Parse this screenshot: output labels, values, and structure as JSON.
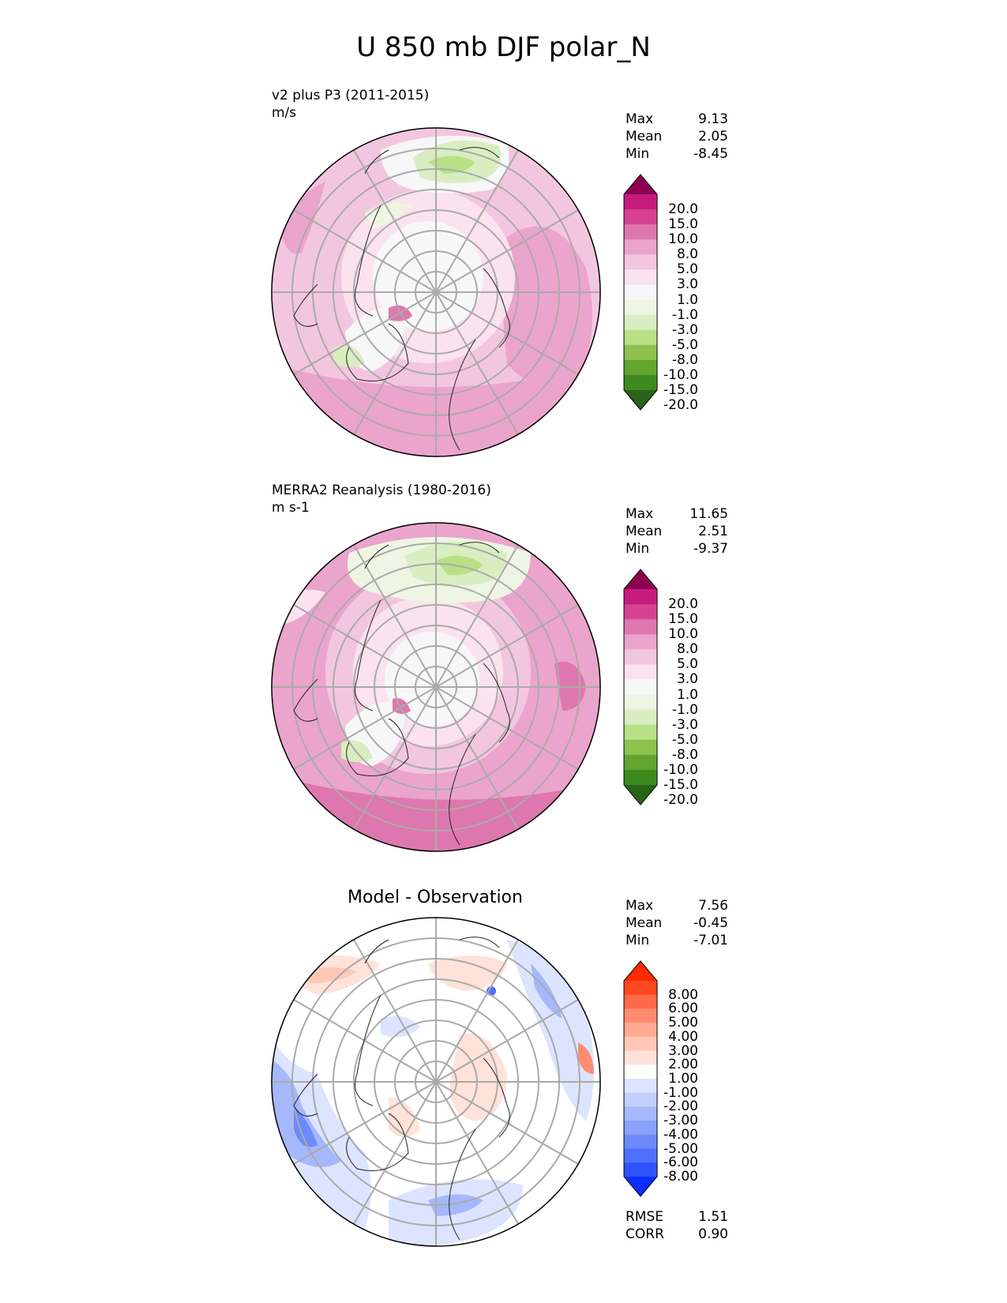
{
  "title": "U 850 mb DJF polar_N",
  "panels": [
    {
      "id": "model",
      "label_line1": "v2 plus P3 (2011-2015)",
      "label_line2": "m/s",
      "stats": [
        {
          "name": "Max",
          "value": "9.13"
        },
        {
          "name": "Mean",
          "value": "2.05"
        },
        {
          "name": "Min",
          "value": "-8.45"
        }
      ]
    },
    {
      "id": "obs",
      "label_line1": "MERRA2 Reanalysis (1980-2016)",
      "label_line2": "m s-1",
      "stats": [
        {
          "name": "Max",
          "value": "11.65"
        },
        {
          "name": "Mean",
          "value": "2.51"
        },
        {
          "name": "Min",
          "value": "-9.37"
        }
      ]
    },
    {
      "id": "diff",
      "label_center": "Model - Observation",
      "stats": [
        {
          "name": "Max",
          "value": "7.56"
        },
        {
          "name": "Mean",
          "value": "-0.45"
        },
        {
          "name": "Min",
          "value": "-7.01"
        }
      ],
      "extra_stats": [
        {
          "name": "RMSE",
          "value": "1.51"
        },
        {
          "name": "CORR",
          "value": "0.90"
        }
      ]
    }
  ],
  "colorbars": {
    "field": {
      "ticks": [
        "20.0",
        "15.0",
        "10.0",
        "8.0",
        "5.0",
        "3.0",
        "1.0",
        "-1.0",
        "-3.0",
        "-5.0",
        "-8.0",
        "-10.0",
        "-15.0",
        "-20.0"
      ],
      "colors": [
        "#8e0152",
        "#c51b7d",
        "#d6428f",
        "#de77ae",
        "#eba4cc",
        "#f3c6e0",
        "#fae2ee",
        "#f7f7f7",
        "#eef5e3",
        "#d9eec0",
        "#b8e186",
        "#8dc24f",
        "#64a531",
        "#3d8a1f",
        "#276419"
      ]
    },
    "diff": {
      "ticks": [
        "8.00",
        "6.00",
        "5.00",
        "4.00",
        "3.00",
        "2.00",
        "1.00",
        "-1.00",
        "-2.00",
        "-3.00",
        "-4.00",
        "-5.00",
        "-6.00",
        "-8.00"
      ],
      "colors": [
        "#ff2a00",
        "#ff4822",
        "#ff6a48",
        "#ff8c70",
        "#ffab94",
        "#ffc8b6",
        "#ffe2d8",
        "#ffffff",
        "#dde4ff",
        "#c2cefc",
        "#a5b8fb",
        "#8aa2fa",
        "#6d8afb",
        "#4e6ffc",
        "#2f52ff",
        "#0c2fff"
      ]
    }
  },
  "chart_data": [
    {
      "type": "heatmap",
      "title": "v2 plus P3 (2011-2015)",
      "units": "m/s",
      "projection": "north polar stereographic",
      "stats": {
        "max": 9.13,
        "mean": 2.05,
        "min": -8.45
      },
      "levels": [
        -20,
        -15,
        -10,
        -8,
        -5,
        -3,
        -1,
        1,
        3,
        5,
        8,
        10,
        15,
        20
      ]
    },
    {
      "type": "heatmap",
      "title": "MERRA2 Reanalysis (1980-2016)",
      "units": "m s-1",
      "projection": "north polar stereographic",
      "stats": {
        "max": 11.65,
        "mean": 2.51,
        "min": -9.37
      },
      "levels": [
        -20,
        -15,
        -10,
        -8,
        -5,
        -3,
        -1,
        1,
        3,
        5,
        8,
        10,
        15,
        20
      ]
    },
    {
      "type": "heatmap",
      "title": "Model - Observation",
      "projection": "north polar stereographic",
      "stats": {
        "max": 7.56,
        "mean": -0.45,
        "min": -7.01,
        "rmse": 1.51,
        "corr": 0.9
      },
      "levels": [
        -8,
        -6,
        -5,
        -4,
        -3,
        -2,
        -1,
        1,
        2,
        3,
        4,
        5,
        6,
        8
      ]
    }
  ]
}
